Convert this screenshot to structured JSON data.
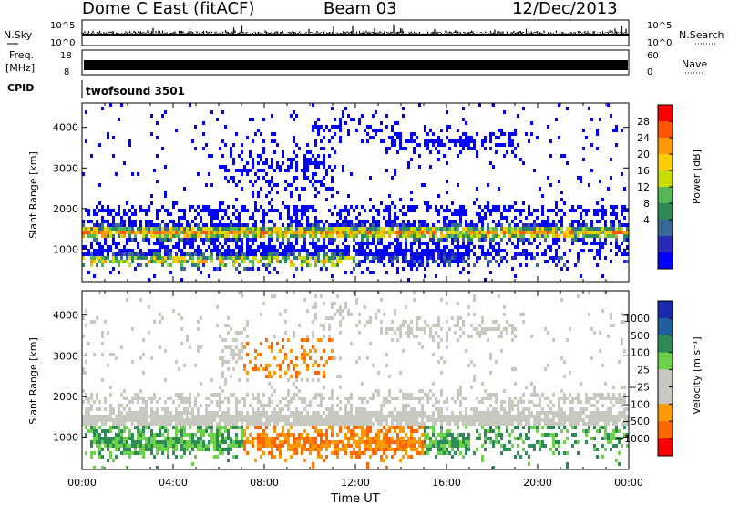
{
  "header": {
    "site": "Dome C East (fitACF)",
    "beam": "Beam 03",
    "date": "12/Dec/2013"
  },
  "panel_labels": {
    "nsky": "N.Sky",
    "nsearch": "N.Search",
    "freq_line1": "Freq.",
    "freq_line2": "[MHz]",
    "nave": "Nave",
    "cpid": "CPID",
    "cpid_value": "twofsound 3501"
  },
  "chart_data": [
    {
      "type": "line",
      "name": "noise",
      "ylabel_left": "N.Sky",
      "ylabel_right": "N.Search",
      "yticks_left": [
        "10^5",
        "10^0"
      ],
      "yticks_right": [
        "10^5",
        "10^0"
      ]
    },
    {
      "type": "line",
      "name": "frequency",
      "ylabel_left": "Freq. [MHz]",
      "ylabel_right": "Nave",
      "yticks_left": [
        "18",
        "8"
      ],
      "yticks_right": [
        "60",
        "0"
      ]
    },
    {
      "type": "heatmap",
      "name": "power",
      "xlabel": "",
      "ylabel": "Slant Range [km]",
      "xlim": [
        0,
        24
      ],
      "ylim": [
        200,
        4600
      ],
      "yticks": [
        "1000",
        "2000",
        "3000",
        "4000"
      ],
      "colorbar": {
        "label": "Power [dB]",
        "ticks": [
          "28",
          "24",
          "20",
          "16",
          "12",
          "8",
          "4"
        ],
        "colors": [
          "#ff0000",
          "#ff5500",
          "#ff9900",
          "#ffcc00",
          "#c8dc00",
          "#55b855",
          "#2e8b57",
          "#3a6a9a",
          "#2a2ab8",
          "#0000ff"
        ]
      }
    },
    {
      "type": "heatmap",
      "name": "velocity",
      "xlabel": "Time UT",
      "ylabel": "Slant Range [km]",
      "xlim": [
        0,
        24
      ],
      "ylim": [
        200,
        4600
      ],
      "yticks": [
        "1000",
        "2000",
        "3000",
        "4000"
      ],
      "xticks": [
        "00:00",
        "04:00",
        "08:00",
        "12:00",
        "16:00",
        "20:00",
        "00:00"
      ],
      "colorbar": {
        "label": "Velocity [m s⁻¹]",
        "ticks": [
          "1000",
          "500",
          "100",
          "25",
          "−25",
          "−100",
          "−500",
          "−1000"
        ],
        "colors": [
          "#1a2ab0",
          "#1f5fa0",
          "#2e8b57",
          "#6cd24a",
          "#c8c8c0",
          "#c8c8c0",
          "#ff9900",
          "#ff6600",
          "#ff0000"
        ]
      }
    }
  ]
}
